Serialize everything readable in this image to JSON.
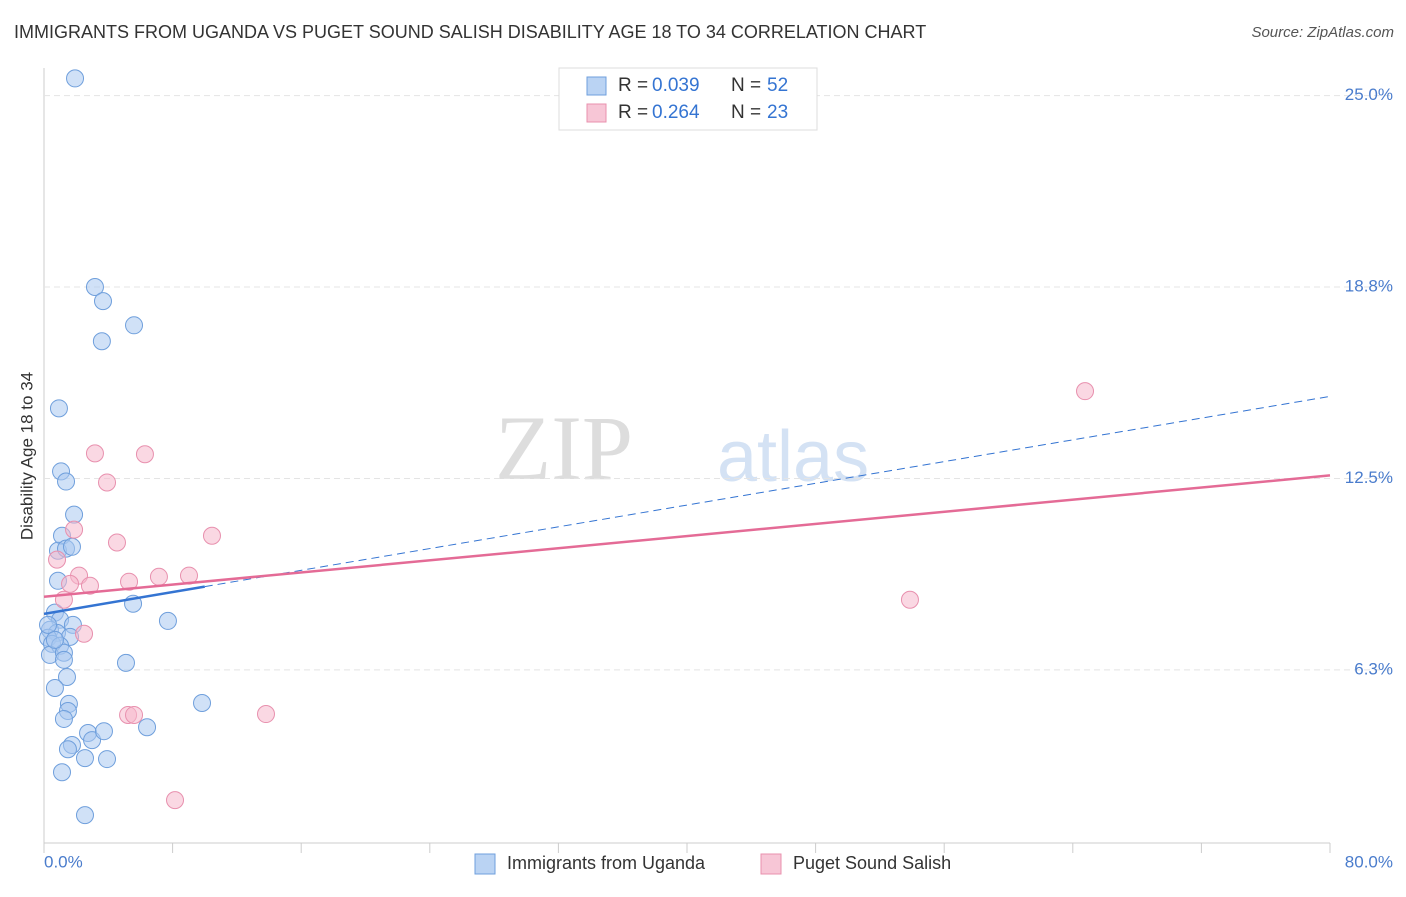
{
  "chart_data": {
    "type": "scatter",
    "title": "IMMIGRANTS FROM UGANDA VS PUGET SOUND SALISH DISABILITY AGE 18 TO 34 CORRELATION CHART",
    "source": "Source: ZipAtlas.com",
    "y_label": "Disability Age 18 to 34",
    "watermark": [
      "ZIP",
      "atlas"
    ],
    "xlim": [
      0,
      80
    ],
    "ylim": [
      0.6,
      25.9
    ],
    "xticks": [
      {
        "value": 0,
        "label": "0.0%"
      },
      {
        "value": 80,
        "label": "80.0%"
      }
    ],
    "xminor_ticks": [
      8,
      16,
      24,
      32,
      40,
      48,
      56,
      64,
      72
    ],
    "yticks": [
      {
        "value": 6.25,
        "label": "6.3%"
      },
      {
        "value": 12.5,
        "label": "12.5%"
      },
      {
        "value": 18.75,
        "label": "18.8%"
      },
      {
        "value": 25,
        "label": "25.0%"
      }
    ],
    "grid": true,
    "stat_labels": [
      "R =",
      "N ="
    ],
    "series": [
      {
        "name": "Immigrants from Uganda",
        "color": "#6f9fdc",
        "fill": "#a9c8f0",
        "line_color": "#3474d2",
        "r": "0.039",
        "n": 52,
        "x": [
          1.93,
          3.17,
          3.67,
          5.6,
          3.6,
          0.93,
          1.06,
          1.37,
          1.87,
          1.12,
          0.87,
          1.37,
          1.74,
          0.87,
          5.54,
          0.68,
          1.0,
          1.8,
          7.71,
          0.37,
          0.81,
          0.25,
          1.62,
          0.5,
          1.0,
          0.37,
          1.24,
          1.24,
          5.1,
          1.43,
          0.68,
          1.55,
          1.49,
          9.83,
          1.24,
          2.74,
          2.99,
          3.73,
          6.41,
          1.74,
          1.49,
          2.55,
          3.92,
          1.12,
          2.55,
          0.25,
          0.68
        ],
        "values": [
          25.56,
          18.75,
          18.29,
          17.5,
          16.98,
          14.79,
          12.73,
          12.4,
          11.32,
          10.63,
          10.14,
          10.21,
          10.27,
          9.16,
          8.41,
          8.12,
          7.89,
          7.72,
          7.85,
          7.56,
          7.46,
          7.3,
          7.33,
          7.1,
          7.04,
          6.74,
          6.81,
          6.58,
          6.48,
          6.02,
          5.66,
          5.14,
          4.91,
          5.17,
          4.65,
          4.19,
          3.96,
          4.25,
          4.38,
          3.8,
          3.66,
          3.37,
          3.34,
          2.91,
          1.51,
          7.72,
          7.23
        ],
        "trend": {
          "x": [
            0,
            10,
            80
          ],
          "y": [
            8.08,
            8.97,
            15.18
          ]
        }
      },
      {
        "name": "Puget Sound Salish",
        "color": "#e890ae",
        "fill": "#f5b8cc",
        "line_color": "#e46b96",
        "r": "0.264",
        "n": 23,
        "x": [
          64.76,
          3.17,
          6.28,
          3.92,
          1.87,
          4.54,
          10.45,
          0.81,
          2.18,
          1.62,
          2.86,
          5.29,
          7.15,
          9.02,
          1.24,
          2.49,
          53.87,
          5.23,
          5.6,
          13.81,
          8.15
        ],
        "values": [
          15.35,
          13.32,
          13.29,
          12.37,
          10.83,
          10.41,
          10.63,
          9.85,
          9.33,
          9.06,
          9.0,
          9.13,
          9.29,
          9.33,
          8.54,
          7.43,
          8.54,
          4.78,
          4.78,
          4.81,
          2.0
        ],
        "trend": {
          "x": [
            0,
            80
          ],
          "y": [
            8.64,
            12.6
          ]
        }
      }
    ]
  }
}
